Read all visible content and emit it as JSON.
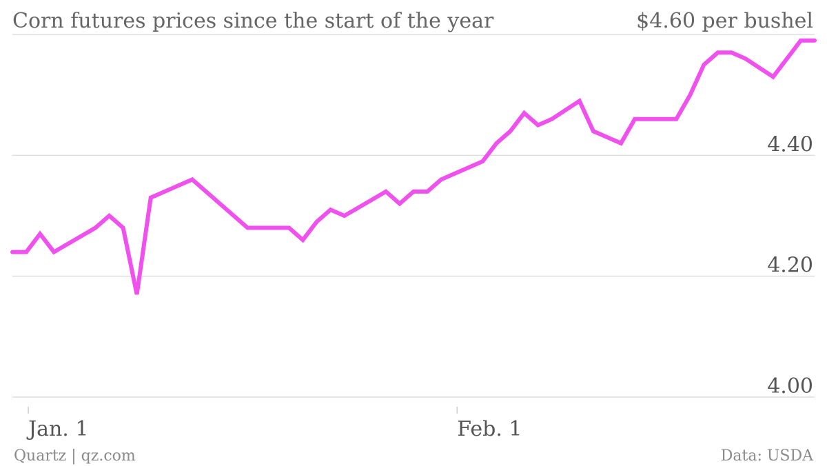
{
  "chart_data": {
    "type": "line",
    "title": "Corn futures prices since the start of the year",
    "top_label": "$4.60 per bushel",
    "ylim": [
      4.0,
      4.6
    ],
    "yticks": [
      {
        "value": 4.4,
        "label": "4.40"
      },
      {
        "value": 4.2,
        "label": "4.20"
      },
      {
        "value": 4.0,
        "label": "4.00"
      }
    ],
    "xticks": [
      {
        "value": 1,
        "label": "Jan. 1"
      },
      {
        "value": 32,
        "label": "Feb. 1"
      }
    ],
    "xlim": [
      0,
      58
    ],
    "grid": true,
    "series": [
      {
        "color": "#f050ee",
        "x": [
          0,
          1,
          2,
          3,
          6,
          7,
          8,
          9,
          10,
          13,
          17,
          18,
          20,
          21,
          22,
          23,
          24,
          27,
          28,
          29,
          30,
          31,
          34,
          35,
          36,
          37,
          38,
          39,
          41,
          42,
          44,
          45,
          46,
          47,
          48,
          49,
          50,
          51,
          52,
          53,
          55,
          56,
          57,
          58
        ],
        "y": [
          4.24,
          4.24,
          4.27,
          4.24,
          4.28,
          4.3,
          4.28,
          4.17,
          4.33,
          4.36,
          4.28,
          4.28,
          4.28,
          4.26,
          4.29,
          4.31,
          4.3,
          4.34,
          4.32,
          4.34,
          4.34,
          4.36,
          4.39,
          4.42,
          4.44,
          4.47,
          4.45,
          4.46,
          4.49,
          4.44,
          4.42,
          4.46,
          4.46,
          4.46,
          4.46,
          4.5,
          4.55,
          4.57,
          4.57,
          4.56,
          4.53,
          4.56,
          4.59,
          4.59
        ]
      }
    ]
  },
  "footer": {
    "source_left": "Quartz | qz.com",
    "source_right": "Data: USDA"
  },
  "colors": {
    "line": "#f050ee",
    "grid": "#dddddd",
    "text": "#666666"
  }
}
